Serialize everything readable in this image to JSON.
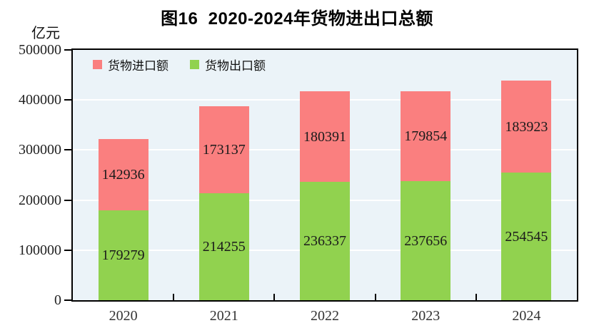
{
  "chart_data": {
    "type": "bar",
    "stacked": true,
    "title": "图16  2020-2024年货物进出口总额",
    "unit_label": "亿元",
    "categories": [
      "2020",
      "2021",
      "2022",
      "2023",
      "2024"
    ],
    "series": [
      {
        "key": "exports",
        "name": "货物出口额",
        "color": "#91d24f",
        "values": [
          179279,
          214255,
          236337,
          237656,
          254545
        ]
      },
      {
        "key": "imports",
        "name": "货物进口额",
        "color": "#fa7f7f",
        "values": [
          142936,
          173137,
          180391,
          179854,
          183923
        ]
      }
    ],
    "legend": [
      {
        "key": "imports",
        "label": "货物进口额",
        "color": "#fa7f7f"
      },
      {
        "key": "exports",
        "label": "货物出口额",
        "color": "#91d24f"
      }
    ],
    "ylim": [
      0,
      500000
    ],
    "yticks": [
      0,
      100000,
      200000,
      300000,
      400000,
      500000
    ],
    "ylabel": "亿元",
    "xlabel": "",
    "grid": "horizontal",
    "grid_color": "#ffffff",
    "plot_background": "#ebf3f8",
    "frame_color": "#000000",
    "legend_position": "top-left-inside"
  }
}
